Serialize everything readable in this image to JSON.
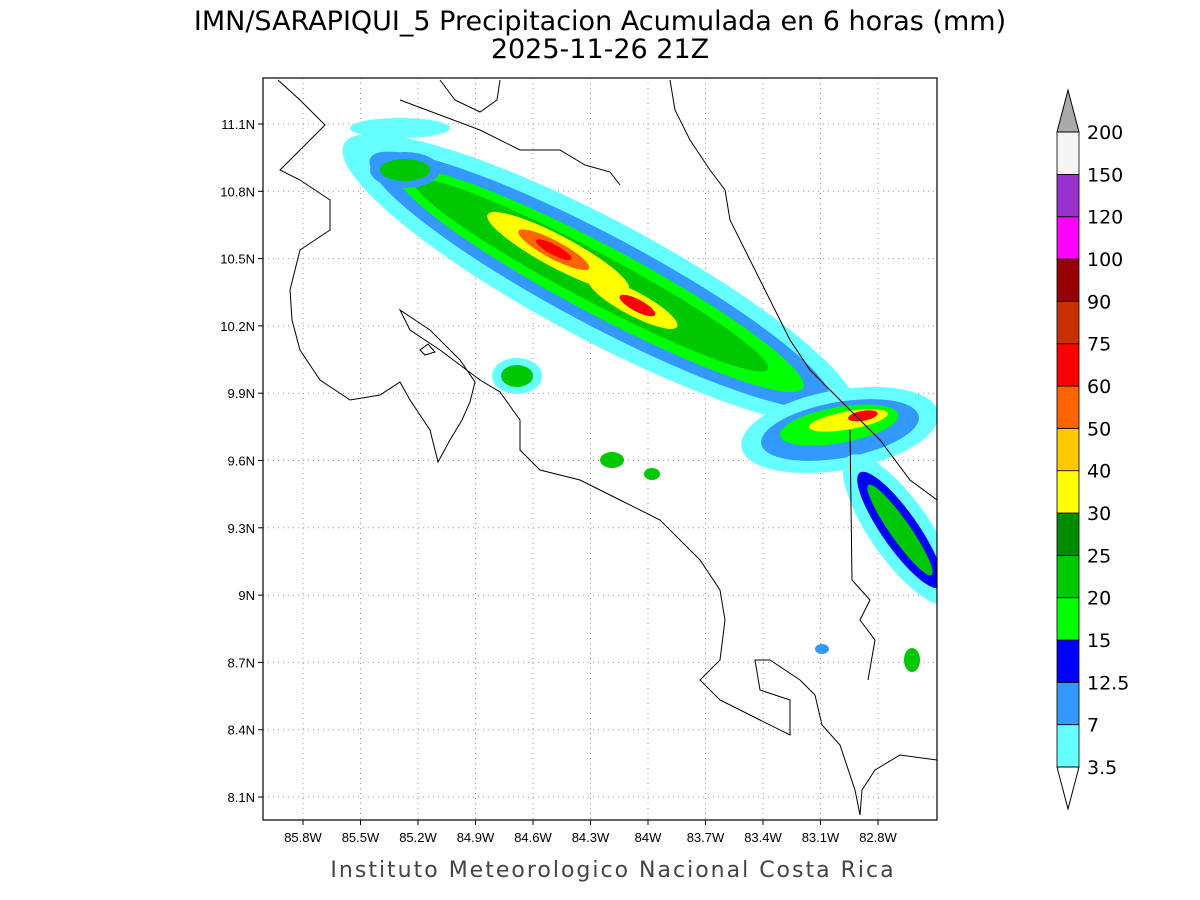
{
  "title": "IMN/SARAPIQUI_5 Precipitacion Acumulada en 6 horas (mm)",
  "subtitle": "2025-11-26 21Z",
  "x_axis": {
    "ticks": [
      "85.8W",
      "85.5W",
      "85.2W",
      "84.9W",
      "84.6W",
      "84.3W",
      "84W",
      "83.7W",
      "83.4W",
      "83.1W",
      "82.8W"
    ]
  },
  "y_axis": {
    "ticks": [
      "11.1N",
      "10.8N",
      "10.5N",
      "10.2N",
      "9.9N",
      "9.6N",
      "9.3N",
      "9N",
      "8.7N",
      "8.4N",
      "8.1N"
    ]
  },
  "colorbar": {
    "levels": [
      "3.5",
      "7",
      "12.5",
      "15",
      "20",
      "25",
      "30",
      "40",
      "50",
      "60",
      "75",
      "90",
      "100",
      "120",
      "150",
      "200"
    ],
    "colors": [
      "#66ffff",
      "#3399ff",
      "#0000ff",
      "#00ff00",
      "#00c800",
      "#008c00",
      "#ffff00",
      "#ffc800",
      "#ff6400",
      "#ff0000",
      "#c83200",
      "#960000",
      "#ff00ff",
      "#9932cc",
      "#f5f5f5"
    ],
    "above_color": "#aaaaaa",
    "below_color": "#ffffff"
  },
  "footer": "Instituto Meteorologico Nacional Costa Rica"
}
